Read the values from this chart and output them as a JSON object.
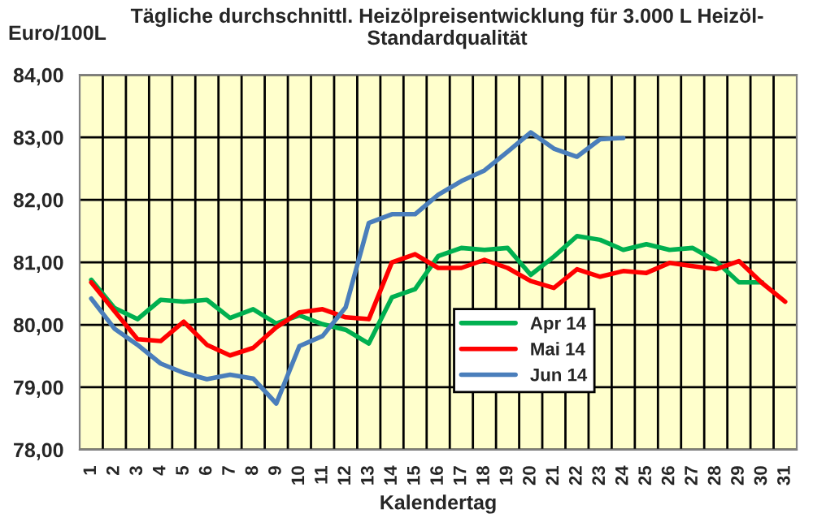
{
  "chart_data": {
    "type": "line",
    "title": "Tägliche durchschnittl. Heizölpreisentwicklung für 3.000 L Heizöl-\nStandardqualität",
    "xlabel": "Kalendertag",
    "ylabel": "Euro/100L",
    "categories": [
      "1",
      "2",
      "3",
      "4",
      "5",
      "6",
      "7",
      "8",
      "9",
      "10",
      "11",
      "12",
      "13",
      "14",
      "15",
      "16",
      "17",
      "18",
      "19",
      "20",
      "21",
      "22",
      "23",
      "24",
      "25",
      "26",
      "27",
      "28",
      "29",
      "30",
      "31"
    ],
    "series": [
      {
        "name": "Apr 14",
        "color": "#00b050",
        "values": [
          80.72,
          80.27,
          80.09,
          80.4,
          80.37,
          80.4,
          80.11,
          80.25,
          80.02,
          80.15,
          80.01,
          79.92,
          79.7,
          80.44,
          80.57,
          81.1,
          81.23,
          81.2,
          81.23,
          80.8,
          81.09,
          81.42,
          81.36,
          81.2,
          81.29,
          81.2,
          81.23,
          81.02,
          80.68,
          80.68,
          null
        ]
      },
      {
        "name": "Mai 14",
        "color": "#ff0000",
        "values": [
          80.68,
          80.22,
          79.77,
          79.74,
          80.05,
          79.68,
          79.51,
          79.63,
          79.96,
          80.2,
          80.25,
          80.12,
          80.09,
          81.0,
          81.13,
          80.91,
          80.91,
          81.04,
          80.91,
          80.7,
          80.59,
          80.89,
          80.77,
          80.86,
          80.83,
          80.99,
          80.94,
          80.89,
          81.02,
          80.67,
          80.37
        ]
      },
      {
        "name": "Jun 14",
        "color": "#4a7ebb",
        "values": [
          80.42,
          79.94,
          79.68,
          79.38,
          79.23,
          79.13,
          79.2,
          79.14,
          78.74,
          79.66,
          79.82,
          80.28,
          81.63,
          81.77,
          81.77,
          82.08,
          82.3,
          82.47,
          82.77,
          83.08,
          82.82,
          82.69,
          82.97,
          82.99,
          null,
          null,
          null,
          null,
          null,
          null,
          null
        ]
      }
    ],
    "ylim": [
      78,
      84
    ],
    "yticks": [
      {
        "value": 78,
        "label": "78,00"
      },
      {
        "value": 79,
        "label": "79,00"
      },
      {
        "value": 80,
        "label": "80,00"
      },
      {
        "value": 81,
        "label": "81,00"
      },
      {
        "value": 82,
        "label": "82,00"
      },
      {
        "value": 83,
        "label": "83,00"
      },
      {
        "value": 84,
        "label": "84,00"
      }
    ],
    "grid": true,
    "legend": "bottom",
    "marker": "none",
    "line_style": "solid"
  }
}
